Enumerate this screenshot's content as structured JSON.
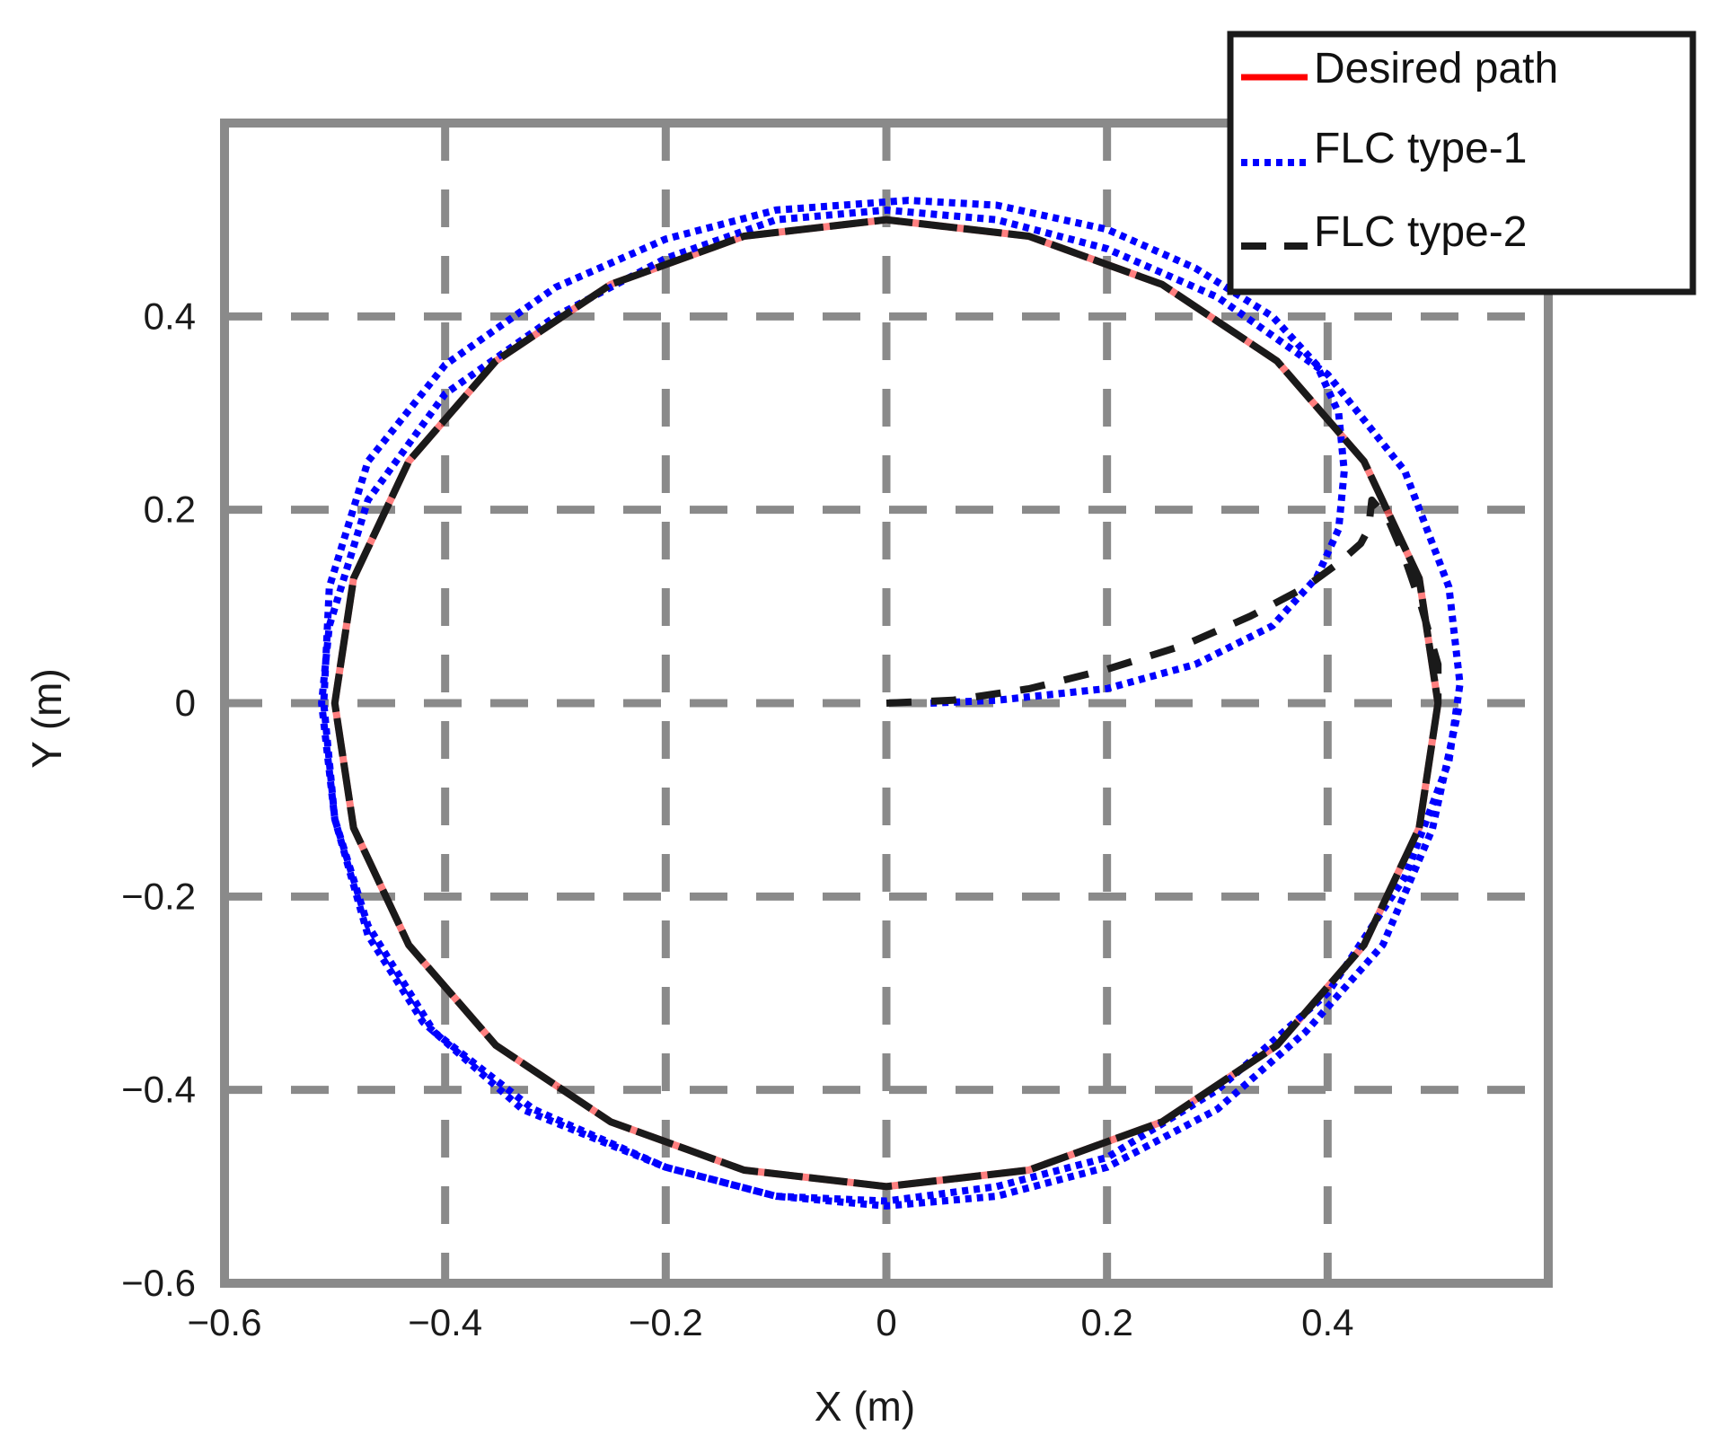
{
  "chart_data": {
    "type": "line",
    "title": "",
    "xlabel": "X (m)",
    "ylabel": "Y (m)",
    "xlim": [
      -0.6,
      0.6
    ],
    "ylim": [
      -0.6,
      0.6
    ],
    "xticks": [
      -0.6,
      -0.4,
      -0.2,
      0,
      0.2,
      0.4
    ],
    "yticks": [
      -0.6,
      -0.4,
      -0.2,
      0,
      0.2,
      0.4
    ],
    "xtick_labels": [
      "−0.6",
      "−0.4",
      "−0.2",
      "0",
      "0.2",
      "0.4"
    ],
    "ytick_labels": [
      "−0.6",
      "−0.4",
      "−0.2",
      "0",
      "0.2",
      "0.4"
    ],
    "grid": true,
    "legend_position": "top-right",
    "series": [
      {
        "name": "Desired path",
        "color": "#ff0000",
        "style": "solid",
        "x": [
          0.5,
          0.483,
          0.433,
          0.354,
          0.25,
          0.129,
          0,
          -0.129,
          -0.25,
          -0.354,
          -0.433,
          -0.483,
          -0.5,
          -0.483,
          -0.433,
          -0.354,
          -0.25,
          -0.129,
          0,
          0.129,
          0.25,
          0.354,
          0.433,
          0.483,
          0.5
        ],
        "y": [
          0,
          0.129,
          0.25,
          0.354,
          0.433,
          0.483,
          0.5,
          0.483,
          0.433,
          0.354,
          0.25,
          0.129,
          0,
          -0.129,
          -0.25,
          -0.354,
          -0.433,
          -0.483,
          -0.5,
          -0.483,
          -0.433,
          -0.354,
          -0.25,
          -0.129,
          0
        ]
      },
      {
        "name": "FLC type-1",
        "color": "#0000ff",
        "style": "dotted",
        "x": [
          0.04,
          0.1,
          0.2,
          0.28,
          0.35,
          0.39,
          0.41,
          0.415,
          0.41,
          0.39,
          0.35,
          0.28,
          0.2,
          0.1,
          0.02,
          -0.1,
          -0.2,
          -0.3,
          -0.4,
          -0.47,
          -0.505,
          -0.51,
          -0.5,
          -0.47,
          -0.41,
          -0.32,
          -0.2,
          -0.1,
          0,
          0.1,
          0.2,
          0.3,
          0.4,
          0.47,
          0.51,
          0.52,
          0.51,
          0.47,
          0.4,
          0.3,
          0.2,
          0.1,
          0,
          -0.1,
          -0.2,
          -0.3,
          -0.4,
          -0.47,
          -0.505,
          -0.512,
          -0.5,
          -0.47,
          -0.42,
          -0.33,
          -0.2,
          -0.1,
          0,
          0.1,
          0.2,
          0.3,
          0.38,
          0.45,
          0.495,
          0.52
        ],
        "y": [
          0,
          0.003,
          0.015,
          0.04,
          0.08,
          0.13,
          0.18,
          0.24,
          0.3,
          0.35,
          0.4,
          0.45,
          0.49,
          0.515,
          0.52,
          0.51,
          0.48,
          0.43,
          0.35,
          0.25,
          0.12,
          0,
          -0.12,
          -0.23,
          -0.34,
          -0.42,
          -0.48,
          -0.51,
          -0.515,
          -0.5,
          -0.47,
          -0.4,
          -0.3,
          -0.18,
          -0.06,
          0.02,
          0.12,
          0.24,
          0.34,
          0.42,
          0.47,
          0.5,
          0.51,
          0.5,
          0.46,
          0.4,
          0.32,
          0.21,
          0.08,
          0,
          -0.12,
          -0.24,
          -0.33,
          -0.42,
          -0.48,
          -0.51,
          -0.52,
          -0.51,
          -0.48,
          -0.42,
          -0.34,
          -0.25,
          -0.13,
          0
        ]
      },
      {
        "name": "FLC type-2",
        "color": "#1a1a1a",
        "style": "dashed",
        "x": [
          0,
          0.06,
          0.13,
          0.2,
          0.27,
          0.33,
          0.38,
          0.41,
          0.43,
          0.437,
          0.44,
          0.455,
          0.47,
          0.485,
          0.5,
          0.5,
          0.483,
          0.433,
          0.354,
          0.25,
          0.129,
          0,
          -0.129,
          -0.25,
          -0.354,
          -0.433,
          -0.483,
          -0.5,
          -0.483,
          -0.433,
          -0.354,
          -0.25,
          -0.129,
          0,
          0.129,
          0.25,
          0.354,
          0.433,
          0.483,
          0.5,
          0.483,
          0.433,
          0.354,
          0.25,
          0.129,
          0,
          -0.129,
          -0.25,
          -0.354,
          -0.433,
          -0.483,
          -0.5,
          -0.483,
          -0.433,
          -0.354,
          -0.25,
          -0.129,
          0,
          0.129,
          0.25,
          0.354,
          0.433,
          0.483,
          0.5
        ],
        "y": [
          0,
          0.003,
          0.015,
          0.035,
          0.06,
          0.09,
          0.12,
          0.145,
          0.165,
          0.18,
          0.21,
          0.19,
          0.15,
          0.1,
          0.04,
          0,
          0.129,
          0.25,
          0.354,
          0.433,
          0.483,
          0.5,
          0.483,
          0.433,
          0.354,
          0.25,
          0.129,
          0,
          -0.129,
          -0.25,
          -0.354,
          -0.433,
          -0.483,
          -0.5,
          -0.483,
          -0.433,
          -0.354,
          -0.25,
          -0.129,
          0,
          0.129,
          0.25,
          0.354,
          0.433,
          0.483,
          0.5,
          0.483,
          0.433,
          0.354,
          0.25,
          0.129,
          0,
          -0.129,
          -0.25,
          -0.354,
          -0.433,
          -0.483,
          -0.5,
          -0.483,
          -0.433,
          -0.354,
          -0.25,
          -0.129,
          0
        ]
      }
    ]
  }
}
